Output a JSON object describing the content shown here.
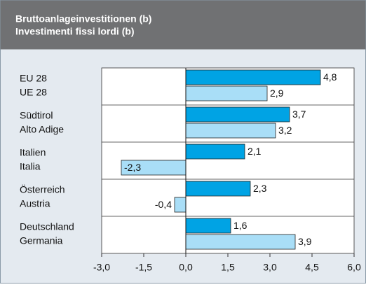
{
  "chart_data": {
    "type": "hbar",
    "title": "Bruttoanlageinvestitionen (b)",
    "subtitle": "Investimenti fissi lordi (b)",
    "categories": [
      [
        "EU 28",
        "UE 28"
      ],
      [
        "Südtirol",
        "Alto Adige"
      ],
      [
        "Italien",
        "Italia"
      ],
      [
        "Österreich",
        "Austria"
      ],
      [
        "Deutschland",
        "Germania"
      ]
    ],
    "series": [
      {
        "color": "#00a3e4",
        "values": [
          4.8,
          3.7,
          2.1,
          2.3,
          1.6
        ],
        "value_labels": [
          "4,8",
          "3,7",
          "2,1",
          "2,3",
          "1,6"
        ]
      },
      {
        "color": "#a9def7",
        "values": [
          2.9,
          3.2,
          -2.3,
          -0.4,
          3.9
        ],
        "value_labels": [
          "2,9",
          "3,2",
          "-2,3",
          "-0,4",
          "3,9"
        ]
      }
    ],
    "xlim": [
      -3,
      6
    ],
    "xticks": [
      {
        "value": -3,
        "label": "-3,0"
      },
      {
        "value": -1.5,
        "label": "-1,5"
      },
      {
        "value": 0,
        "label": "0,0"
      },
      {
        "value": 1.5,
        "label": "1,5"
      },
      {
        "value": 3,
        "label": "3,0"
      },
      {
        "value": 4.5,
        "label": "4,5"
      },
      {
        "value": 6,
        "label": "6,0"
      }
    ]
  }
}
